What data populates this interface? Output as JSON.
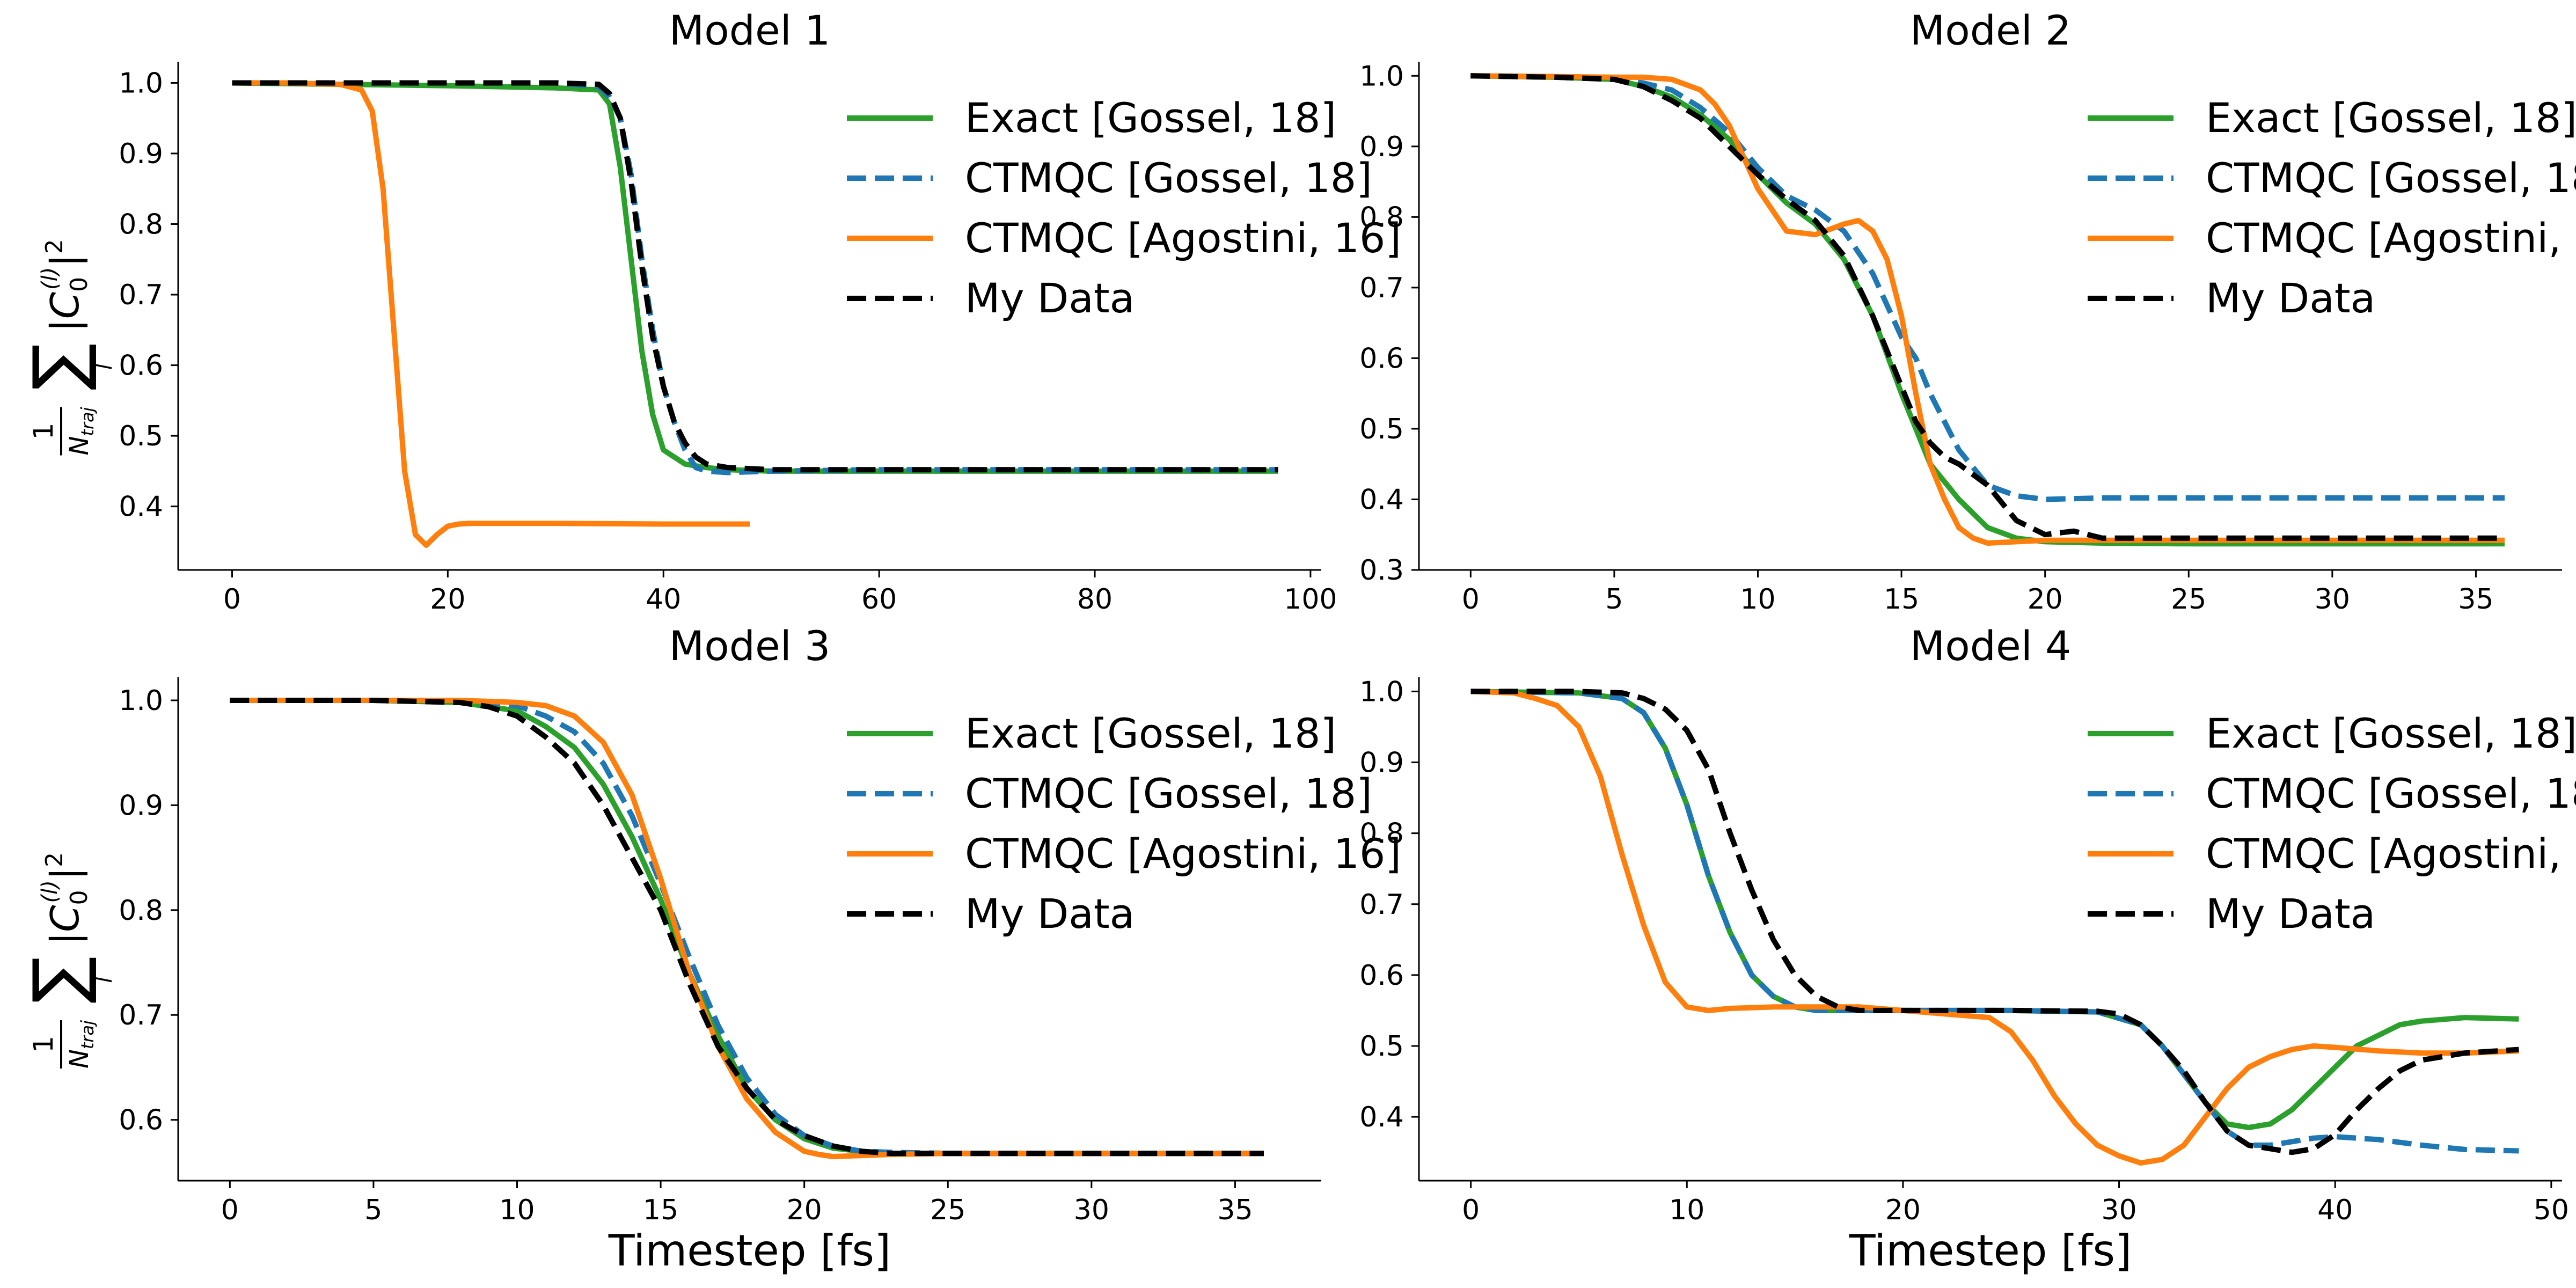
{
  "legend_entries": [
    {
      "label": "Exact [Gossel, 18]",
      "color": "#2ca02c",
      "dash": "solid"
    },
    {
      "label": "CTMQC [Gossel, 18]",
      "color": "#1f77b4",
      "dash": "dashed"
    },
    {
      "label": "CTMQC [Agostini, 16]",
      "color": "#ff7f0e",
      "dash": "solid"
    },
    {
      "label": "My Data",
      "color": "#000000",
      "dash": "dashed"
    }
  ],
  "chart_data": [
    {
      "type": "line",
      "title": "Model 1",
      "xlabel": "",
      "ylabel": "1/N_traj Σ_l |C_0^(l)|^2",
      "xlim": [
        -5,
        101
      ],
      "ylim": [
        0.31,
        1.03
      ],
      "xticks": [
        0,
        20,
        40,
        60,
        80,
        100
      ],
      "yticks": [
        0.4,
        0.5,
        0.6,
        0.7,
        0.8,
        0.9,
        1.0
      ],
      "legend": "top-right",
      "series": [
        {
          "name": "Exact [Gossel, 18]",
          "x": [
            0,
            10,
            20,
            30,
            34,
            35,
            36,
            37,
            38,
            39,
            40,
            41,
            42,
            44,
            46,
            50,
            60,
            70,
            80,
            90,
            97
          ],
          "y": [
            1.0,
            0.998,
            0.996,
            0.993,
            0.99,
            0.97,
            0.88,
            0.75,
            0.62,
            0.53,
            0.48,
            0.47,
            0.46,
            0.455,
            0.452,
            0.45,
            0.45,
            0.45,
            0.45,
            0.45,
            0.45
          ]
        },
        {
          "name": "CTMQC [Gossel, 18]",
          "x": [
            0,
            10,
            20,
            30,
            34,
            35,
            36,
            37,
            38,
            39,
            40,
            41,
            42,
            43,
            44,
            46,
            50,
            60,
            70,
            80,
            90,
            97
          ],
          "y": [
            1.0,
            1.0,
            1.0,
            1.0,
            0.995,
            0.98,
            0.95,
            0.87,
            0.75,
            0.65,
            0.57,
            0.52,
            0.48,
            0.455,
            0.45,
            0.448,
            0.45,
            0.452,
            0.452,
            0.452,
            0.452,
            0.452
          ]
        },
        {
          "name": "CTMQC [Agostini, 16]",
          "x": [
            0,
            5,
            10,
            12,
            13,
            14,
            15,
            16,
            17,
            18,
            19,
            20,
            21,
            22,
            25,
            30,
            40,
            48
          ],
          "y": [
            1.0,
            1.0,
            0.998,
            0.99,
            0.96,
            0.85,
            0.65,
            0.45,
            0.36,
            0.345,
            0.36,
            0.372,
            0.375,
            0.376,
            0.376,
            0.376,
            0.375,
            0.375
          ]
        },
        {
          "name": "My Data",
          "x": [
            0,
            10,
            20,
            30,
            34,
            35,
            36,
            37,
            38,
            39,
            40,
            41,
            42,
            43,
            44,
            46,
            50,
            60,
            70,
            80,
            90,
            97
          ],
          "y": [
            1.0,
            1.0,
            1.0,
            1.0,
            0.998,
            0.985,
            0.95,
            0.86,
            0.74,
            0.64,
            0.57,
            0.52,
            0.49,
            0.47,
            0.46,
            0.455,
            0.452,
            0.452,
            0.452,
            0.452,
            0.452,
            0.452
          ]
        }
      ]
    },
    {
      "type": "line",
      "title": "Model 2",
      "xlabel": "",
      "ylabel": "",
      "xlim": [
        -1.8,
        38.0
      ],
      "ylim": [
        0.3,
        1.02
      ],
      "xticks": [
        0,
        5,
        10,
        15,
        20,
        25,
        30,
        35
      ],
      "yticks": [
        0.3,
        0.4,
        0.5,
        0.6,
        0.7,
        0.8,
        0.9,
        1.0
      ],
      "legend": "top-right",
      "series": [
        {
          "name": "Exact [Gossel, 18]",
          "x": [
            0,
            3,
            5,
            6,
            7,
            8,
            9,
            10,
            11,
            12,
            13,
            14,
            15,
            15.5,
            16,
            17,
            18,
            19,
            20,
            22,
            25,
            30,
            36
          ],
          "y": [
            1.0,
            0.998,
            0.995,
            0.985,
            0.97,
            0.945,
            0.91,
            0.86,
            0.82,
            0.79,
            0.74,
            0.66,
            0.55,
            0.5,
            0.45,
            0.4,
            0.36,
            0.345,
            0.34,
            0.338,
            0.337,
            0.337,
            0.337
          ]
        },
        {
          "name": "CTMQC [Gossel, 18]",
          "x": [
            0,
            3,
            5,
            6,
            7,
            8,
            9,
            10,
            11,
            12,
            13,
            14,
            15,
            15.5,
            16,
            17,
            18,
            19,
            20,
            22,
            25,
            30,
            36
          ],
          "y": [
            1.0,
            0.998,
            0.995,
            0.99,
            0.98,
            0.955,
            0.92,
            0.87,
            0.83,
            0.81,
            0.78,
            0.72,
            0.63,
            0.6,
            0.55,
            0.47,
            0.42,
            0.405,
            0.4,
            0.402,
            0.402,
            0.402,
            0.402
          ]
        },
        {
          "name": "CTMQC [Agostini, 16]",
          "x": [
            0,
            3,
            5,
            6,
            7,
            8,
            8.5,
            9,
            10,
            11,
            12,
            13,
            13.5,
            14,
            14.5,
            15,
            15.5,
            16,
            16.5,
            17,
            17.5,
            18,
            19,
            20,
            22,
            25,
            30,
            36
          ],
          "y": [
            1.0,
            0.999,
            0.998,
            0.998,
            0.995,
            0.98,
            0.96,
            0.93,
            0.84,
            0.78,
            0.775,
            0.79,
            0.795,
            0.78,
            0.74,
            0.66,
            0.55,
            0.45,
            0.4,
            0.36,
            0.345,
            0.338,
            0.34,
            0.342,
            0.342,
            0.342,
            0.342,
            0.342
          ]
        },
        {
          "name": "My Data",
          "x": [
            0,
            3,
            5,
            6,
            7,
            8,
            9,
            10,
            11,
            12,
            13,
            14,
            15,
            15.5,
            16,
            16.5,
            17,
            18,
            19,
            20,
            21,
            22,
            25,
            30,
            36
          ],
          "y": [
            1.0,
            0.998,
            0.995,
            0.985,
            0.965,
            0.94,
            0.9,
            0.86,
            0.825,
            0.795,
            0.745,
            0.66,
            0.56,
            0.51,
            0.48,
            0.46,
            0.45,
            0.42,
            0.37,
            0.35,
            0.355,
            0.345,
            0.345,
            0.345,
            0.345
          ]
        }
      ]
    },
    {
      "type": "line",
      "title": "Model 3",
      "xlabel": "Timestep [fs]",
      "ylabel": "1/N_traj Σ_l |C_0^(l)|^2",
      "xlim": [
        -1.8,
        38.0
      ],
      "ylim": [
        0.542,
        1.022
      ],
      "xticks": [
        0,
        5,
        10,
        15,
        20,
        25,
        30,
        35
      ],
      "yticks": [
        0.6,
        0.7,
        0.8,
        0.9,
        1.0
      ],
      "legend": "top-right",
      "series": [
        {
          "name": "Exact [Gossel, 18]",
          "x": [
            0,
            5,
            8,
            10,
            11,
            12,
            13,
            14,
            15,
            16,
            17,
            18,
            19,
            20,
            21,
            22,
            23,
            25,
            30,
            36
          ],
          "y": [
            1.0,
            1.0,
            0.998,
            0.99,
            0.975,
            0.955,
            0.92,
            0.87,
            0.81,
            0.74,
            0.68,
            0.63,
            0.6,
            0.582,
            0.573,
            0.57,
            0.568,
            0.568,
            0.568,
            0.568
          ]
        },
        {
          "name": "CTMQC [Gossel, 18]",
          "x": [
            0,
            5,
            8,
            10,
            11,
            12,
            13,
            14,
            15,
            16,
            17,
            18,
            19,
            20,
            21,
            22,
            23,
            25,
            30,
            36
          ],
          "y": [
            1.0,
            1.0,
            0.999,
            0.995,
            0.985,
            0.97,
            0.94,
            0.89,
            0.825,
            0.755,
            0.69,
            0.64,
            0.605,
            0.585,
            0.575,
            0.57,
            0.569,
            0.568,
            0.568,
            0.568
          ]
        },
        {
          "name": "CTMQC [Agostini, 16]",
          "x": [
            0,
            5,
            8,
            10,
            11,
            12,
            13,
            14,
            15,
            16,
            17,
            18,
            19,
            20,
            20.5,
            21,
            22,
            23,
            25,
            30,
            36
          ],
          "y": [
            1.0,
            1.0,
            1.0,
            0.998,
            0.995,
            0.985,
            0.96,
            0.91,
            0.83,
            0.74,
            0.67,
            0.62,
            0.588,
            0.57,
            0.567,
            0.565,
            0.566,
            0.567,
            0.568,
            0.568,
            0.568
          ]
        },
        {
          "name": "My Data",
          "x": [
            0,
            5,
            8,
            9,
            10,
            11,
            12,
            13,
            14,
            15,
            16,
            17,
            18,
            19,
            20,
            21,
            22,
            23,
            25,
            30,
            36
          ],
          "y": [
            1.0,
            1.0,
            0.998,
            0.994,
            0.985,
            0.965,
            0.94,
            0.9,
            0.85,
            0.8,
            0.73,
            0.67,
            0.63,
            0.6,
            0.585,
            0.575,
            0.57,
            0.568,
            0.568,
            0.568,
            0.568
          ]
        }
      ]
    },
    {
      "type": "line",
      "title": "Model 4",
      "xlabel": "Timestep [fs]",
      "ylabel": "",
      "xlim": [
        -2.4,
        50.5
      ],
      "ylim": [
        0.31,
        1.02
      ],
      "xticks": [
        0,
        10,
        20,
        30,
        40,
        50
      ],
      "yticks": [
        0.4,
        0.5,
        0.6,
        0.7,
        0.8,
        0.9,
        1.0
      ],
      "legend": "top-right",
      "series": [
        {
          "name": "Exact [Gossel, 18]",
          "x": [
            0,
            5,
            7,
            8,
            9,
            10,
            11,
            12,
            13,
            14,
            15,
            16,
            17,
            18,
            20,
            25,
            29,
            31,
            32,
            33,
            34,
            35,
            36,
            37,
            38,
            39,
            40,
            41,
            42,
            43,
            44,
            46,
            48.5
          ],
          "y": [
            1.0,
            0.998,
            0.99,
            0.97,
            0.92,
            0.84,
            0.74,
            0.66,
            0.6,
            0.57,
            0.555,
            0.55,
            0.55,
            0.55,
            0.55,
            0.55,
            0.548,
            0.53,
            0.5,
            0.46,
            0.42,
            0.39,
            0.385,
            0.39,
            0.41,
            0.44,
            0.47,
            0.5,
            0.515,
            0.53,
            0.535,
            0.54,
            0.538
          ]
        },
        {
          "name": "CTMQC [Gossel, 18]",
          "x": [
            0,
            5,
            7,
            8,
            9,
            10,
            11,
            12,
            13,
            14,
            15,
            16,
            17,
            18,
            20,
            25,
            29,
            31,
            32,
            33,
            34,
            35,
            36,
            37,
            38,
            39,
            40,
            42,
            44,
            46,
            48.5
          ],
          "y": [
            1.0,
            0.998,
            0.99,
            0.97,
            0.92,
            0.84,
            0.74,
            0.66,
            0.6,
            0.57,
            0.555,
            0.55,
            0.55,
            0.55,
            0.55,
            0.55,
            0.548,
            0.53,
            0.5,
            0.46,
            0.42,
            0.38,
            0.36,
            0.36,
            0.365,
            0.37,
            0.372,
            0.368,
            0.36,
            0.354,
            0.352
          ]
        },
        {
          "name": "CTMQC [Agostini, 16]",
          "x": [
            0,
            2,
            3,
            4,
            5,
            6,
            7,
            8,
            9,
            10,
            11,
            12,
            14,
            18,
            20,
            24,
            25,
            26,
            27,
            28,
            29,
            30,
            31,
            32,
            33,
            34,
            35,
            36,
            37,
            38,
            39,
            40,
            42,
            44,
            46,
            48.5
          ],
          "y": [
            1.0,
            0.998,
            0.99,
            0.98,
            0.95,
            0.88,
            0.77,
            0.67,
            0.59,
            0.555,
            0.55,
            0.553,
            0.555,
            0.555,
            0.55,
            0.54,
            0.52,
            0.48,
            0.43,
            0.39,
            0.36,
            0.345,
            0.335,
            0.34,
            0.36,
            0.4,
            0.44,
            0.47,
            0.485,
            0.495,
            0.5,
            0.498,
            0.493,
            0.49,
            0.49,
            0.493
          ]
        },
        {
          "name": "My Data",
          "x": [
            0,
            5,
            7,
            8,
            9,
            10,
            11,
            12,
            13,
            14,
            15,
            16,
            17,
            18,
            20,
            25,
            29,
            30,
            31,
            32,
            33,
            34,
            35,
            36,
            37,
            38,
            39,
            40,
            41,
            42,
            43,
            44,
            46,
            48.5
          ],
          "y": [
            1.0,
            1.0,
            0.998,
            0.99,
            0.975,
            0.945,
            0.89,
            0.8,
            0.72,
            0.65,
            0.6,
            0.57,
            0.555,
            0.55,
            0.55,
            0.55,
            0.549,
            0.545,
            0.53,
            0.5,
            0.465,
            0.42,
            0.38,
            0.36,
            0.355,
            0.35,
            0.355,
            0.375,
            0.41,
            0.44,
            0.465,
            0.48,
            0.49,
            0.495
          ]
        }
      ]
    }
  ]
}
